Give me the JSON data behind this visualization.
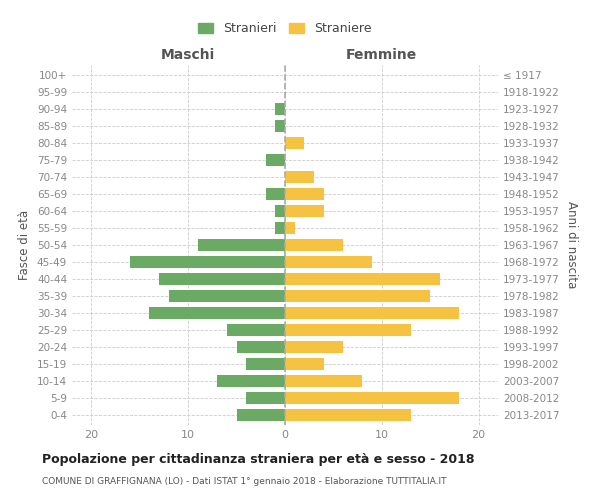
{
  "age_groups": [
    "0-4",
    "5-9",
    "10-14",
    "15-19",
    "20-24",
    "25-29",
    "30-34",
    "35-39",
    "40-44",
    "45-49",
    "50-54",
    "55-59",
    "60-64",
    "65-69",
    "70-74",
    "75-79",
    "80-84",
    "85-89",
    "90-94",
    "95-99",
    "100+"
  ],
  "birth_years": [
    "2013-2017",
    "2008-2012",
    "2003-2007",
    "1998-2002",
    "1993-1997",
    "1988-1992",
    "1983-1987",
    "1978-1982",
    "1973-1977",
    "1968-1972",
    "1963-1967",
    "1958-1962",
    "1953-1957",
    "1948-1952",
    "1943-1947",
    "1938-1942",
    "1933-1937",
    "1928-1932",
    "1923-1927",
    "1918-1922",
    "≤ 1917"
  ],
  "maschi": [
    5,
    4,
    7,
    4,
    5,
    6,
    14,
    12,
    13,
    16,
    9,
    1,
    1,
    2,
    0,
    2,
    0,
    1,
    1,
    0,
    0
  ],
  "femmine": [
    13,
    18,
    8,
    4,
    6,
    13,
    18,
    15,
    16,
    9,
    6,
    1,
    4,
    4,
    3,
    0,
    2,
    0,
    0,
    0,
    0
  ],
  "maschi_color": "#6aaa64",
  "femmine_color": "#f5c242",
  "grid_color": "#cccccc",
  "dashed_line_color": "#aaaaaa",
  "title": "Popolazione per cittadinanza straniera per età e sesso - 2018",
  "subtitle": "COMUNE DI GRAFFIGNANA (LO) - Dati ISTAT 1° gennaio 2018 - Elaborazione TUTTITALIA.IT",
  "ylabel_left": "Fasce di età",
  "ylabel_right": "Anni di nascita",
  "xlabel_left": "Maschi",
  "xlabel_right": "Femmine",
  "legend_stranieri": "Stranieri",
  "legend_straniere": "Straniere",
  "xlim": [
    -22,
    22
  ],
  "xticks": [
    -20,
    -10,
    0,
    10,
    20
  ],
  "xticklabels": [
    "20",
    "10",
    "0",
    "10",
    "20"
  ]
}
